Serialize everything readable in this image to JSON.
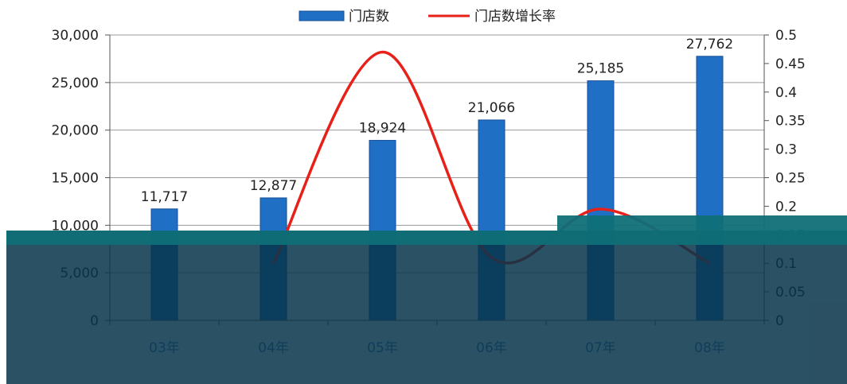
{
  "chart_data": {
    "type": "bar",
    "categories": [
      "03年",
      "04年",
      "05年",
      "06年",
      "07年",
      "08年"
    ],
    "series": [
      {
        "name": "门店数",
        "type": "bar",
        "axis": "left",
        "values": [
          11717,
          12877,
          18924,
          21066,
          25185,
          27762
        ],
        "labels": [
          "11,717",
          "12,877",
          "18,924",
          "21,066",
          "25,185",
          "27,762"
        ],
        "color": "#1f6fc5"
      },
      {
        "name": "门店数增长率",
        "type": "line",
        "axis": "right",
        "smooth": true,
        "values": [
          null,
          0.1,
          0.47,
          0.11,
          0.195,
          0.1
        ],
        "color": "#e8201a"
      }
    ],
    "left_axis": {
      "ylim": [
        0,
        30000
      ],
      "ticks": [
        0,
        5000,
        10000,
        15000,
        20000,
        25000,
        30000
      ],
      "tick_labels": [
        "0",
        "5,000",
        "10,000",
        "15,000",
        "20,000",
        "25,000",
        "30,000"
      ]
    },
    "right_axis": {
      "ylim": [
        0,
        0.5
      ],
      "ticks": [
        0,
        0.05,
        0.1,
        0.15,
        0.2,
        0.25,
        0.3,
        0.35,
        0.4,
        0.45,
        0.5
      ],
      "tick_labels": [
        "0",
        "0.05",
        "0.1",
        "0.15",
        "0.2",
        "0.25",
        "0.3",
        "0.35",
        "0.4",
        "0.45",
        "0.5"
      ]
    },
    "grid": true,
    "legend": "top-center"
  },
  "colors": {
    "overlay_dark": "#08344a",
    "overlay_teal": "#0f6f77"
  }
}
